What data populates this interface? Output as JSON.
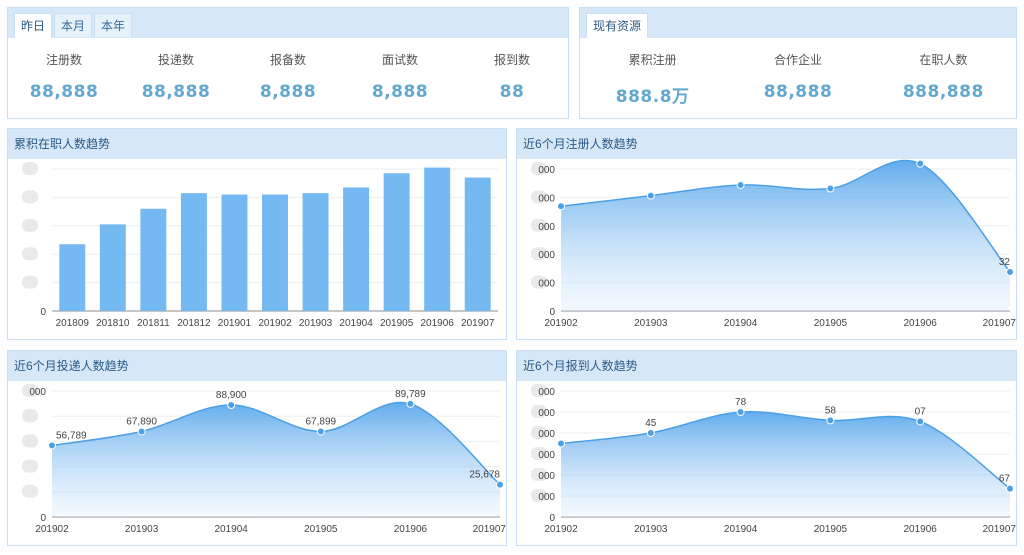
{
  "colors": {
    "header_bg": "#d6e8f8",
    "border": "#c9dff3",
    "accent_value": "#62a9cf",
    "bar": "#74b9f1",
    "line": "#4b9fe5",
    "title_text": "#2b5a86"
  },
  "stats_panel": {
    "tabs": [
      {
        "label": "昨日",
        "active": true
      },
      {
        "label": "本月",
        "active": false
      },
      {
        "label": "本年",
        "active": false
      }
    ],
    "items": [
      {
        "label": "注册数",
        "value": "88,888"
      },
      {
        "label": "投递数",
        "value": "88,888"
      },
      {
        "label": "报备数",
        "value": "8,888"
      },
      {
        "label": "面试数",
        "value": "8,888"
      },
      {
        "label": "报到数",
        "value": "88"
      }
    ]
  },
  "resources_panel": {
    "tab_label": "现有资源",
    "items": [
      {
        "label": "累积注册",
        "value": "888.8万"
      },
      {
        "label": "合作企业",
        "value": "88,888"
      },
      {
        "label": "在职人数",
        "value": "888,888"
      }
    ]
  },
  "chart_data": [
    {
      "id": "employed-trend",
      "type": "bar",
      "title": "累积在职人数趋势",
      "categories": [
        "201809",
        "201810",
        "201811",
        "201812",
        "201901",
        "201902",
        "201903",
        "201904",
        "201905",
        "201906",
        "201907"
      ],
      "values": [
        47000,
        61000,
        72000,
        83000,
        82000,
        82000,
        83000,
        87000,
        97000,
        101000,
        94000
      ],
      "ylim": [
        0,
        100000
      ],
      "y_ticks": [
        "0",
        "",
        "",
        "",
        "",
        ""
      ],
      "grid": true
    },
    {
      "id": "registered-trend",
      "type": "area",
      "title": "近6个月注册人数趋势",
      "categories": [
        "201902",
        "201903",
        "201904",
        "201905",
        "201906",
        "201907"
      ],
      "values": [
        59000,
        65000,
        71000,
        69000,
        83000,
        22000
      ],
      "point_labels": [
        "",
        "",
        "",
        "",
        "",
        "32"
      ],
      "ylim": [
        0,
        80000
      ],
      "y_ticks": [
        "0",
        "000",
        "000",
        "000",
        "000",
        "000"
      ],
      "grid": true
    },
    {
      "id": "delivered-trend",
      "type": "area",
      "title": "近6个月投递人数趋势",
      "categories": [
        "201902",
        "201903",
        "201904",
        "201905",
        "201906",
        "201907"
      ],
      "values": [
        56789,
        67890,
        88900,
        67899,
        89789,
        25678
      ],
      "point_labels": [
        "56,789",
        "67,890",
        "88,900",
        "67,899",
        "89,789",
        "25,678"
      ],
      "ylim": [
        0,
        100000
      ],
      "y_ticks": [
        "0",
        "",
        "",
        "",
        "",
        "000"
      ],
      "grid": true
    },
    {
      "id": "reported-trend",
      "type": "area",
      "title": "近6个月报到人数趋势",
      "categories": [
        "201902",
        "201903",
        "201904",
        "201905",
        "201906",
        "201907"
      ],
      "values": [
        3500,
        4000,
        5000,
        4600,
        4550,
        1350
      ],
      "point_labels": [
        "",
        "45",
        "78",
        "58",
        "07",
        "67"
      ],
      "ylim": [
        0,
        6000
      ],
      "y_ticks": [
        "0",
        "000",
        "000",
        "000",
        "000",
        "000",
        "000"
      ],
      "grid": true
    }
  ]
}
